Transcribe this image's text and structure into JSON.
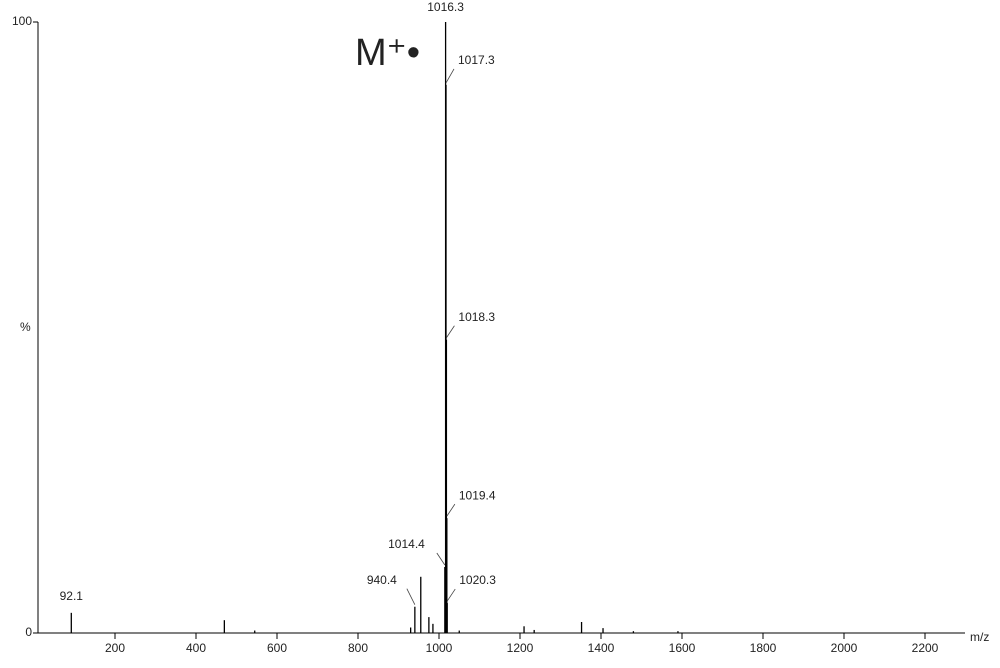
{
  "chart_data": {
    "type": "spectrum",
    "annotation": "M⁺•",
    "xlabel": "m/z",
    "ylabel": "%",
    "xlim": [
      0,
      2300
    ],
    "xticks": [
      200,
      400,
      600,
      800,
      1000,
      1200,
      1400,
      1600,
      1800,
      2000,
      2200
    ],
    "ylim": [
      0,
      100
    ],
    "yticks": [
      0,
      100
    ],
    "color": "#000000",
    "peaks": {
      "x": [
        92.1,
        940.4,
        1014.4,
        1016.3,
        1017.3,
        1018.3,
        1019.4,
        1020.3
      ],
      "values": [
        3.3,
        4.3,
        10.8,
        100,
        89.7,
        48,
        18.8,
        4.9
      ]
    },
    "minor_peaks": {
      "x": [
        470,
        545,
        930,
        955,
        975,
        985,
        1050,
        1210,
        1235,
        1352,
        1405,
        1480,
        1590
      ],
      "values": [
        2.1,
        0.4,
        0.9,
        9.2,
        2.6,
        1.5,
        0.4,
        1.1,
        0.5,
        1.8,
        0.8,
        0.3,
        0.3
      ]
    }
  }
}
